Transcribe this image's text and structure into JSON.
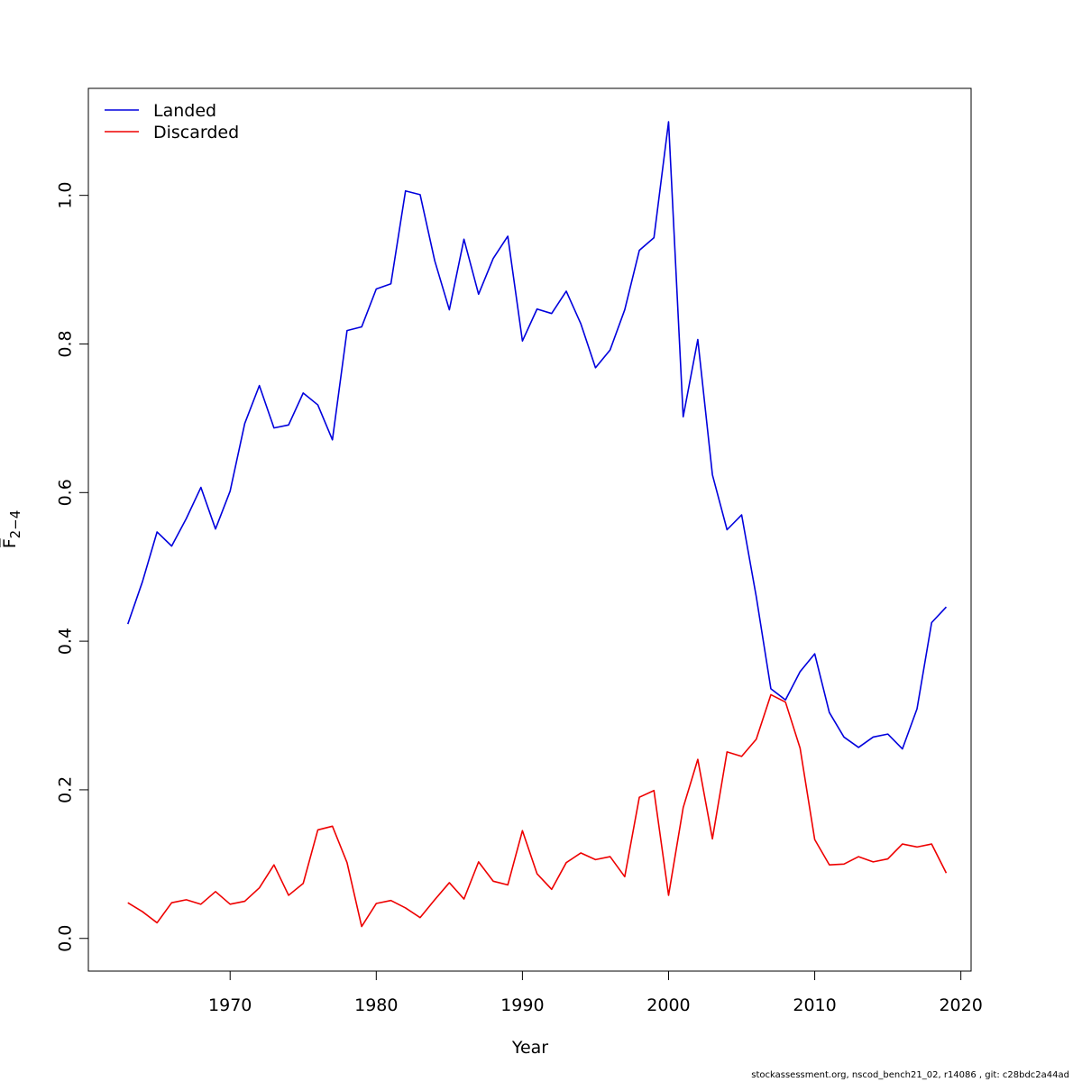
{
  "chart_data": {
    "type": "line",
    "xlabel": "Year",
    "ylabel": "F̅",
    "ylabel_subscript": "2−4",
    "xlim": [
      1960.3,
      2020.7
    ],
    "ylim": [
      -0.044,
      1.144
    ],
    "xticks": [
      1970,
      1980,
      1990,
      2000,
      2010,
      2020
    ],
    "yticks": [
      0.0,
      0.2,
      0.4,
      0.6,
      0.8,
      1.0
    ],
    "ytick_labels": [
      "0.0",
      "0.2",
      "0.4",
      "0.6",
      "0.8",
      "1.0"
    ],
    "grid": false,
    "legend_position": "top-left",
    "x": [
      1963,
      1964,
      1965,
      1966,
      1967,
      1968,
      1969,
      1970,
      1971,
      1972,
      1973,
      1974,
      1975,
      1976,
      1977,
      1978,
      1979,
      1980,
      1981,
      1982,
      1983,
      1984,
      1985,
      1986,
      1987,
      1988,
      1989,
      1990,
      1991,
      1992,
      1993,
      1994,
      1995,
      1996,
      1997,
      1998,
      1999,
      2000,
      2001,
      2002,
      2003,
      2004,
      2005,
      2006,
      2007,
      2008,
      2009,
      2010,
      2011,
      2012,
      2013,
      2014,
      2015,
      2016,
      2017,
      2018,
      2019
    ],
    "series": [
      {
        "name": "Landed",
        "color": "#0000dd",
        "values": [
          0.423,
          0.48,
          0.547,
          0.528,
          0.565,
          0.607,
          0.551,
          0.602,
          0.693,
          0.744,
          0.687,
          0.691,
          0.734,
          0.718,
          0.671,
          0.818,
          0.823,
          0.874,
          0.881,
          1.006,
          1.001,
          0.912,
          0.846,
          0.941,
          0.867,
          0.915,
          0.945,
          0.804,
          0.847,
          0.841,
          0.871,
          0.827,
          0.768,
          0.792,
          0.846,
          0.926,
          0.943,
          1.099,
          0.702,
          0.806,
          0.624,
          0.55,
          0.57,
          0.46,
          0.336,
          0.321,
          0.359,
          0.383,
          0.304,
          0.271,
          0.257,
          0.271,
          0.275,
          0.255,
          0.309,
          0.425,
          0.446
        ]
      },
      {
        "name": "Discarded",
        "color": "#ee0000",
        "values": [
          0.048,
          0.036,
          0.021,
          0.048,
          0.052,
          0.046,
          0.063,
          0.046,
          0.05,
          0.068,
          0.099,
          0.058,
          0.074,
          0.146,
          0.151,
          0.102,
          0.016,
          0.047,
          0.051,
          0.041,
          0.028,
          0.052,
          0.075,
          0.053,
          0.103,
          0.077,
          0.072,
          0.145,
          0.087,
          0.066,
          0.102,
          0.115,
          0.106,
          0.11,
          0.083,
          0.19,
          0.199,
          0.058,
          0.176,
          0.241,
          0.134,
          0.251,
          0.245,
          0.268,
          0.328,
          0.318,
          0.256,
          0.133,
          0.099,
          0.1,
          0.11,
          0.103,
          0.107,
          0.127,
          0.123,
          0.127,
          0.088
        ]
      }
    ]
  },
  "footer": "stockassessment.org, nscod_bench21_02, r14086 , git: c28bdc2a44ad"
}
